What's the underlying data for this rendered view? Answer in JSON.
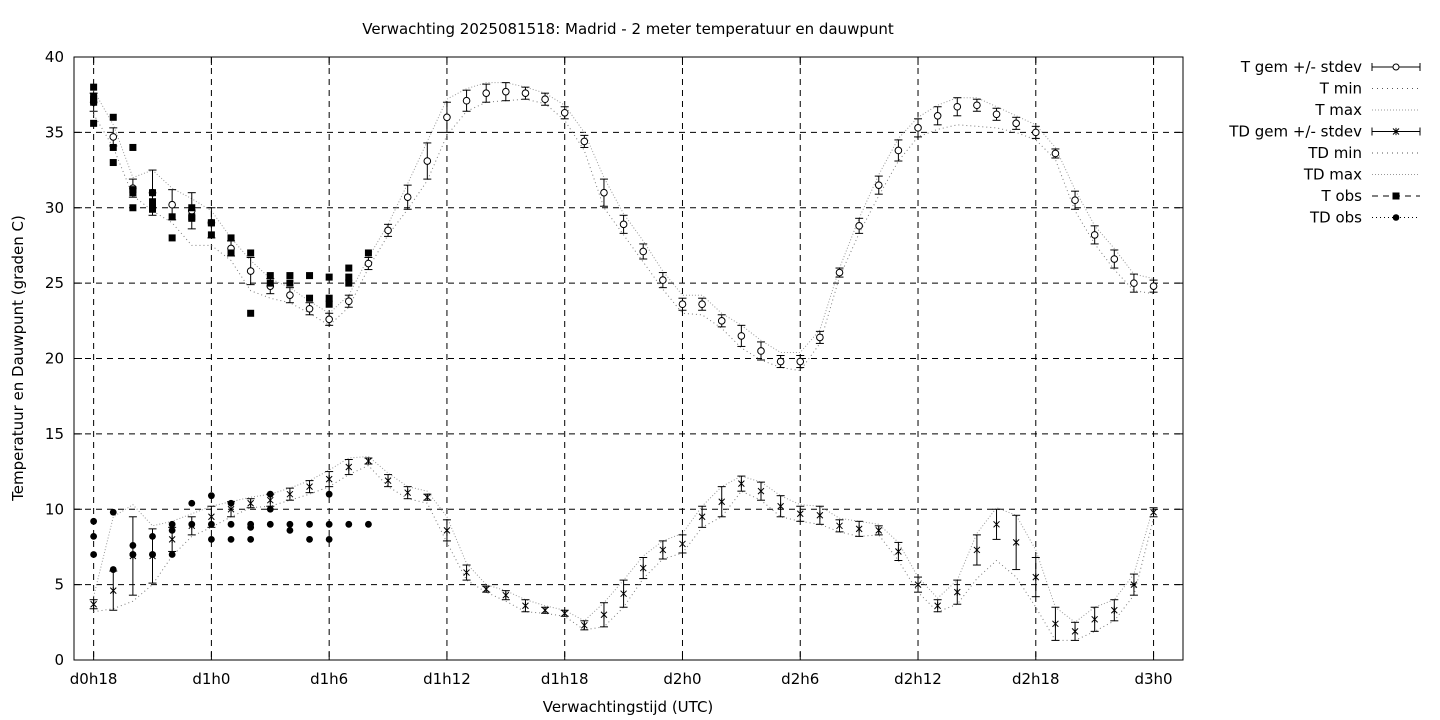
{
  "chart_data": {
    "type": "scatter",
    "title": "Verwachting 2025081518: Madrid - 2 meter temperatuur en dauwpunt",
    "xlabel": "Verwachtingstijd (UTC)",
    "ylabel": "Temperatuur en Dauwpunt (graden C)",
    "xlim": [
      -1,
      55.5
    ],
    "ylim": [
      0,
      40
    ],
    "grid": true,
    "legend_position": "outside-top-right",
    "x_ticks": [
      {
        "x": 0,
        "label": "d0h18"
      },
      {
        "x": 6,
        "label": "d1h0"
      },
      {
        "x": 12,
        "label": "d1h6"
      },
      {
        "x": 18,
        "label": "d1h12"
      },
      {
        "x": 24,
        "label": "d1h18"
      },
      {
        "x": 30,
        "label": "d2h0"
      },
      {
        "x": 36,
        "label": "d2h6"
      },
      {
        "x": 42,
        "label": "d2h12"
      },
      {
        "x": 48,
        "label": "d2h18"
      },
      {
        "x": 54,
        "label": "d3h0"
      }
    ],
    "y_ticks": [
      0,
      5,
      10,
      15,
      20,
      25,
      30,
      35,
      40
    ],
    "legend": [
      {
        "label": "T gem +/- stdev",
        "style": "errorbar-circle"
      },
      {
        "label": "T min",
        "style": "dotted"
      },
      {
        "label": "T max",
        "style": "dotted-light"
      },
      {
        "label": "TD gem +/- stdev",
        "style": "errorbar-star"
      },
      {
        "label": "TD min",
        "style": "dotted"
      },
      {
        "label": "TD max",
        "style": "dotted-light"
      },
      {
        "label": "T obs",
        "style": "dashed-square"
      },
      {
        "label": "TD obs",
        "style": "dotted-circle"
      }
    ],
    "series": [
      {
        "name": "T gem +/- stdev",
        "x": [
          0,
          1,
          2,
          3,
          4,
          5,
          6,
          7,
          8,
          9,
          10,
          11,
          12,
          13,
          14,
          15,
          16,
          17,
          18,
          19,
          20,
          21,
          22,
          23,
          24,
          25,
          26,
          27,
          28,
          29,
          30,
          31,
          32,
          33,
          34,
          35,
          36,
          37,
          38,
          39,
          40,
          41,
          42,
          43,
          44,
          45,
          46,
          47,
          48,
          49,
          50,
          51,
          52,
          53,
          54
        ],
        "y": [
          37.0,
          34.7,
          31.3,
          31.0,
          30.2,
          29.8,
          29.0,
          27.3,
          25.8,
          24.8,
          24.2,
          23.3,
          22.6,
          23.8,
          26.3,
          28.5,
          30.7,
          33.1,
          36.0,
          37.1,
          37.6,
          37.7,
          37.6,
          37.2,
          36.3,
          34.4,
          31.0,
          28.9,
          27.1,
          25.2,
          23.6,
          23.6,
          22.5,
          21.5,
          20.5,
          19.8,
          19.8,
          21.4,
          25.7,
          28.8,
          31.5,
          33.8,
          35.3,
          36.1,
          36.7,
          36.8,
          36.2,
          35.6,
          35.0,
          33.6,
          30.5,
          28.2,
          26.6,
          25.0,
          24.8
        ],
        "stdev": [
          0.6,
          0.6,
          0.6,
          1.5,
          1.0,
          1.2,
          1.0,
          0.5,
          0.9,
          0.5,
          0.5,
          0.4,
          0.4,
          0.4,
          0.4,
          0.4,
          0.8,
          1.2,
          1.0,
          0.7,
          0.6,
          0.6,
          0.4,
          0.4,
          0.4,
          0.4,
          0.9,
          0.6,
          0.5,
          0.5,
          0.4,
          0.4,
          0.4,
          0.7,
          0.6,
          0.4,
          0.4,
          0.4,
          0.3,
          0.5,
          0.6,
          0.7,
          0.6,
          0.6,
          0.6,
          0.4,
          0.4,
          0.4,
          0.4,
          0.3,
          0.6,
          0.6,
          0.6,
          0.6,
          0.4
        ]
      },
      {
        "name": "T min",
        "x": [
          0,
          1,
          2,
          3,
          4,
          5,
          6,
          7,
          8,
          9,
          10,
          11,
          12,
          13,
          14,
          15,
          16,
          17,
          18,
          19,
          20,
          21,
          22,
          23,
          24,
          25,
          26,
          27,
          28,
          29,
          30,
          31,
          32,
          33,
          34,
          35,
          36,
          37,
          38,
          39,
          40,
          41,
          42,
          43,
          44,
          45,
          46,
          47,
          48,
          49,
          50,
          51,
          52,
          53,
          54
        ],
        "y": [
          36.2,
          34.0,
          30.8,
          29.8,
          29.0,
          27.5,
          27.5,
          26.5,
          24.5,
          24.0,
          23.7,
          23.0,
          22.2,
          23.4,
          26.0,
          28.2,
          29.9,
          31.8,
          34.8,
          36.4,
          37.0,
          37.1,
          37.2,
          36.9,
          35.8,
          33.8,
          30.0,
          28.2,
          26.4,
          24.6,
          23.0,
          22.9,
          22.0,
          20.7,
          19.9,
          19.4,
          19.2,
          21.0,
          25.4,
          28.3,
          30.8,
          33.1,
          34.7,
          35.2,
          35.5,
          35.4,
          35.3,
          35.0,
          34.5,
          33.2,
          29.8,
          27.6,
          25.9,
          24.5,
          24.3
        ]
      },
      {
        "name": "T max",
        "x": [
          0,
          1,
          2,
          3,
          4,
          5,
          6,
          7,
          8,
          9,
          10,
          11,
          12,
          13,
          14,
          15,
          16,
          17,
          18,
          19,
          20,
          21,
          22,
          23,
          24,
          25,
          26,
          27,
          28,
          29,
          30,
          31,
          32,
          33,
          34,
          35,
          36,
          37,
          38,
          39,
          40,
          41,
          42,
          43,
          44,
          45,
          46,
          47,
          48,
          49,
          50,
          51,
          52,
          53,
          54
        ],
        "y": [
          37.8,
          35.5,
          32.0,
          32.5,
          31.3,
          30.6,
          29.8,
          28.0,
          26.5,
          25.3,
          24.7,
          23.8,
          23.0,
          24.2,
          26.7,
          28.9,
          31.6,
          34.4,
          37.2,
          37.9,
          38.3,
          38.3,
          38.0,
          37.6,
          36.8,
          35.0,
          32.0,
          29.6,
          27.8,
          25.8,
          24.2,
          24.2,
          23.0,
          22.2,
          21.2,
          20.4,
          20.4,
          21.9,
          26.0,
          29.3,
          32.2,
          34.6,
          36.0,
          36.8,
          37.3,
          37.3,
          36.7,
          36.1,
          35.5,
          34.0,
          31.2,
          28.8,
          27.3,
          25.6,
          25.3
        ]
      },
      {
        "name": "TD gem +/- stdev",
        "x": [
          0,
          1,
          2,
          3,
          4,
          5,
          6,
          7,
          8,
          9,
          10,
          11,
          12,
          13,
          14,
          15,
          16,
          17,
          18,
          19,
          20,
          21,
          22,
          23,
          24,
          25,
          26,
          27,
          28,
          29,
          30,
          31,
          32,
          33,
          34,
          35,
          36,
          37,
          38,
          39,
          40,
          41,
          42,
          43,
          44,
          45,
          46,
          47,
          48,
          49,
          50,
          51,
          52,
          53,
          54
        ],
        "y": [
          3.7,
          4.6,
          6.9,
          6.9,
          8.0,
          8.9,
          9.5,
          10.0,
          10.4,
          10.6,
          11.0,
          11.5,
          12.0,
          12.8,
          13.2,
          11.9,
          11.1,
          10.8,
          8.6,
          5.8,
          4.7,
          4.3,
          3.6,
          3.3,
          3.1,
          2.3,
          3.0,
          4.4,
          6.1,
          7.3,
          7.7,
          9.5,
          10.5,
          11.7,
          11.2,
          10.2,
          9.7,
          9.6,
          8.9,
          8.7,
          8.6,
          7.2,
          5.0,
          3.6,
          4.5,
          7.3,
          9.0,
          7.8,
          5.5,
          2.4,
          1.9,
          2.7,
          3.3,
          5.0,
          9.8
        ],
        "stdev": [
          0.3,
          1.3,
          2.6,
          1.8,
          0.8,
          0.6,
          0.7,
          0.5,
          0.3,
          0.4,
          0.4,
          0.4,
          0.5,
          0.5,
          0.2,
          0.4,
          0.4,
          0.2,
          0.7,
          0.5,
          0.2,
          0.3,
          0.4,
          0.2,
          0.2,
          0.3,
          0.8,
          0.9,
          0.7,
          0.6,
          0.6,
          0.7,
          1.0,
          0.5,
          0.6,
          0.7,
          0.5,
          0.6,
          0.4,
          0.5,
          0.3,
          0.6,
          0.5,
          0.4,
          0.8,
          1.0,
          1.0,
          1.8,
          1.3,
          1.1,
          0.6,
          0.8,
          0.7,
          0.7,
          0.3
        ]
      },
      {
        "name": "TD min",
        "x": [
          0,
          1,
          2,
          3,
          4,
          5,
          6,
          7,
          8,
          9,
          10,
          11,
          12,
          13,
          14,
          15,
          16,
          17,
          18,
          19,
          20,
          21,
          22,
          23,
          24,
          25,
          26,
          27,
          28,
          29,
          30,
          31,
          32,
          33,
          34,
          35,
          36,
          37,
          38,
          39,
          40,
          41,
          42,
          43,
          44,
          45,
          46,
          47,
          48,
          49,
          50,
          51,
          52,
          53,
          54
        ],
        "y": [
          3.2,
          3.4,
          3.9,
          5.0,
          6.9,
          8.2,
          8.8,
          9.5,
          10.1,
          10.2,
          10.6,
          11.0,
          11.5,
          12.3,
          12.9,
          11.5,
          10.7,
          10.4,
          7.8,
          5.3,
          4.5,
          3.9,
          3.2,
          3.1,
          2.9,
          2.0,
          2.2,
          3.5,
          5.4,
          6.7,
          7.1,
          8.8,
          9.5,
          11.2,
          10.6,
          9.5,
          9.2,
          9.0,
          8.5,
          8.2,
          8.3,
          6.6,
          4.5,
          3.2,
          3.7,
          5.4,
          6.6,
          5.5,
          3.5,
          1.3,
          1.3,
          1.9,
          2.6,
          4.3,
          9.4
        ]
      },
      {
        "name": "TD max",
        "x": [
          0,
          1,
          2,
          3,
          4,
          5,
          6,
          7,
          8,
          9,
          10,
          11,
          12,
          13,
          14,
          15,
          16,
          17,
          18,
          19,
          20,
          21,
          22,
          23,
          24,
          25,
          26,
          27,
          28,
          29,
          30,
          31,
          32,
          33,
          34,
          35,
          36,
          37,
          38,
          39,
          40,
          41,
          42,
          43,
          44,
          45,
          46,
          47,
          48,
          49,
          50,
          51,
          52,
          53,
          54
        ],
        "y": [
          4.2,
          9.5,
          10.3,
          8.9,
          9.2,
          9.7,
          10.2,
          10.5,
          10.8,
          11.0,
          11.4,
          11.9,
          12.6,
          13.4,
          13.5,
          12.4,
          11.5,
          11.2,
          9.5,
          6.4,
          5.0,
          4.6,
          4.0,
          3.6,
          3.3,
          2.6,
          3.8,
          5.3,
          6.9,
          7.9,
          8.4,
          10.2,
          11.5,
          12.2,
          11.8,
          10.9,
          10.3,
          10.2,
          9.4,
          9.2,
          9.0,
          7.8,
          5.5,
          4.1,
          5.3,
          8.4,
          10.1,
          9.6,
          7.3,
          3.5,
          2.5,
          3.5,
          4.0,
          5.7,
          10.2
        ]
      },
      {
        "name": "T obs",
        "x": [
          0,
          0,
          0,
          0,
          0,
          1,
          1,
          1,
          2,
          2,
          2,
          2,
          3,
          3,
          3,
          3,
          4,
          4,
          5,
          5,
          5,
          6,
          6,
          6,
          7,
          7,
          8,
          8,
          9,
          9,
          10,
          10,
          11,
          11,
          12,
          12,
          12,
          13,
          13,
          13,
          14
        ],
        "y": [
          38.0,
          37.4,
          37.0,
          35.6,
          37.2,
          36.0,
          34.0,
          33.0,
          34.0,
          31.2,
          31.0,
          30.0,
          31.0,
          30.4,
          30.0,
          29.9,
          29.4,
          28.0,
          30.0,
          29.4,
          29.3,
          29.0,
          28.2,
          29.0,
          28.0,
          27.0,
          27.0,
          23.0,
          25.5,
          25.0,
          25.5,
          25.0,
          25.5,
          24.0,
          25.4,
          24.0,
          23.6,
          26.0,
          25.4,
          25.0,
          27.0
        ]
      },
      {
        "name": "TD obs",
        "x": [
          0,
          0,
          0,
          1,
          1,
          2,
          2,
          2,
          3,
          3,
          3,
          4,
          4,
          4,
          5,
          5,
          6,
          6,
          6,
          7,
          7,
          7,
          8,
          8,
          8,
          9,
          9,
          9,
          10,
          10,
          11,
          11,
          12,
          12,
          12,
          13,
          14
        ],
        "y": [
          9.2,
          8.2,
          7.0,
          9.8,
          6.0,
          7.6,
          7.0,
          7.0,
          8.2,
          7.0,
          7.0,
          9.0,
          8.6,
          7.0,
          10.4,
          9.0,
          10.9,
          9.0,
          8.0,
          10.4,
          9.0,
          8.0,
          9.0,
          8.8,
          8.0,
          11.0,
          10.0,
          9.0,
          9.0,
          8.6,
          9.0,
          8.0,
          11.0,
          9.0,
          8.0,
          9.0,
          9.0
        ]
      }
    ]
  }
}
